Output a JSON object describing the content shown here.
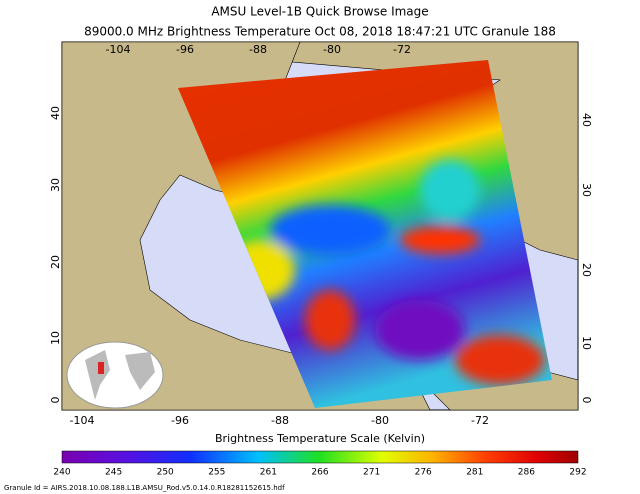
{
  "header": {
    "title": "AMSU Level-1B Quick Browse Image",
    "subtitle": "89000.0 MHz  Brightness Temperature    Oct 08, 2018 18:47:21 UTC    Granule 188"
  },
  "map": {
    "lon_top": [
      "-104",
      "-96",
      "-88",
      "-80",
      "-72"
    ],
    "lon_bottom": [
      "-104",
      "-96",
      "-88",
      "-80",
      "-72"
    ],
    "lat_left": [
      "40",
      "30",
      "20",
      "10",
      "0"
    ],
    "lat_right": [
      "40",
      "30",
      "20",
      "10",
      "0"
    ]
  },
  "colorbar": {
    "label": "Brightness Temperature Scale (Kelvin)",
    "ticks": [
      "240",
      "245",
      "250",
      "255",
      "261",
      "266",
      "271",
      "276",
      "281",
      "286",
      "292"
    ]
  },
  "footer": {
    "granule_id": "Granule Id = AIRS.2018.10.08.188.L1B.AMSU_Rod.v5.0.14.0.R18281152615.hdf"
  }
}
